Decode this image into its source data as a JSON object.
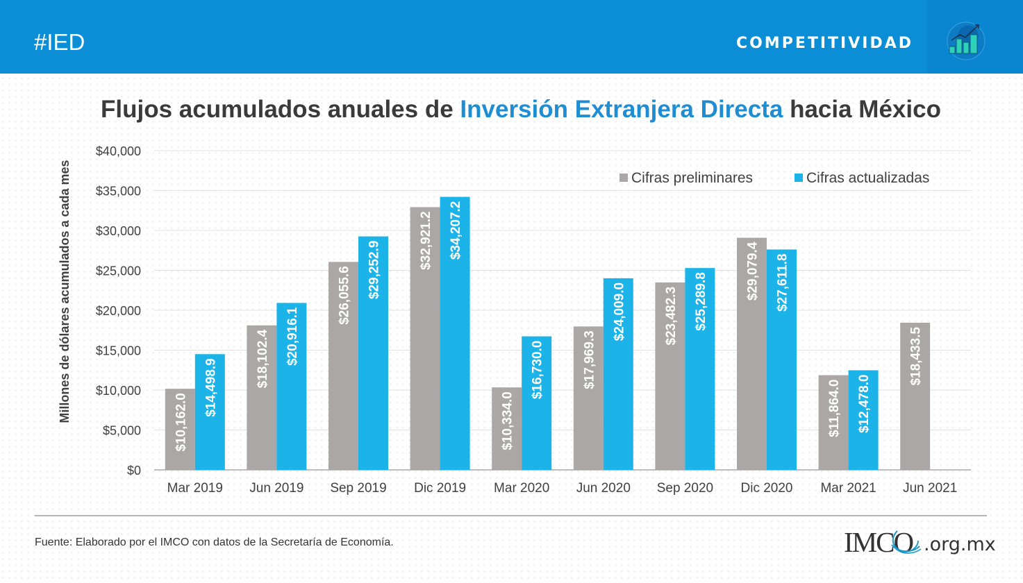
{
  "header": {
    "hashtag": "#IED",
    "section": "COMPETITIVIDAD",
    "section_icon": "bar-chart-growth-icon",
    "colors": {
      "banner": "#0b8ed5"
    }
  },
  "title": {
    "before": "Flujos acumulados anuales de ",
    "highlight": "Inversión Extranjera Directa",
    "after": " hacia México"
  },
  "footer": {
    "source": "Fuente: Elaborado por el IMCO con datos de la Secretaría de Economía.",
    "logo_text": "IMCO",
    "logo_domain": ".org.mx"
  },
  "chart_data": {
    "type": "bar",
    "title": "Flujos acumulados anuales de Inversión Extranjera Directa hacia México",
    "xlabel": "",
    "ylabel": "Millones de dólares acumulados a cada mes",
    "ylim": [
      0,
      40000
    ],
    "yticks": [
      0,
      5000,
      10000,
      15000,
      20000,
      25000,
      30000,
      35000,
      40000
    ],
    "ytick_labels": [
      "$0",
      "$5,000",
      "$10,000",
      "$15,000",
      "$20,000",
      "$25,000",
      "$30,000",
      "$35,000",
      "$40,000"
    ],
    "grid": true,
    "legend_position": "top-right",
    "categories": [
      "Mar 2019",
      "Jun 2019",
      "Sep 2019",
      "Dic 2019",
      "Mar 2020",
      "Jun 2020",
      "Sep 2020",
      "Dic 2020",
      "Mar 2021",
      "Jun 2021"
    ],
    "series": [
      {
        "name": "Cifras preliminares",
        "color": "#aaa7a6",
        "values": [
          10162.0,
          18102.4,
          26055.6,
          32921.2,
          10334.0,
          17969.3,
          23482.3,
          29079.4,
          11864.0,
          18433.5
        ],
        "labels": [
          "$10,162.0",
          "$18,102.4",
          "$26,055.6",
          "$32,921.2",
          "$10,334.0",
          "$17,969.3",
          "$23,482.3",
          "$29,079.4",
          "$11,864.0",
          "$18,433.5"
        ]
      },
      {
        "name": "Cifras actualizadas",
        "color": "#1bb3e8",
        "values": [
          14498.9,
          20916.1,
          29252.9,
          34207.2,
          16730.0,
          24009.0,
          25289.8,
          27611.8,
          12478.0,
          null
        ],
        "labels": [
          "$14,498.9",
          "$20,916.1",
          "$29,252.9",
          "$34,207.2",
          "$16,730.0",
          "$24,009.0",
          "$25,289.8",
          "$27,611.8",
          "$12,478.0",
          null
        ]
      }
    ]
  }
}
